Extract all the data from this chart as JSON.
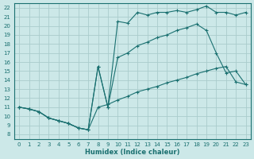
{
  "xlabel": "Humidex (Indice chaleur)",
  "bg_color": "#cce8e8",
  "grid_color": "#aacccc",
  "line_color": "#1a7070",
  "xlim": [
    -0.5,
    23.5
  ],
  "ylim": [
    7.5,
    22.5
  ],
  "xticks": [
    0,
    1,
    2,
    3,
    4,
    5,
    6,
    7,
    8,
    9,
    10,
    11,
    12,
    13,
    14,
    15,
    16,
    17,
    18,
    19,
    20,
    21,
    22,
    23
  ],
  "yticks": [
    8,
    9,
    10,
    11,
    12,
    13,
    14,
    15,
    16,
    17,
    18,
    19,
    20,
    21,
    22
  ],
  "line1_x": [
    0,
    1,
    2,
    3,
    4,
    5,
    6,
    7,
    8,
    9,
    10,
    11,
    12,
    13,
    14,
    15,
    16,
    17,
    18,
    19,
    20,
    21,
    22,
    23
  ],
  "line1_y": [
    11.0,
    10.8,
    10.5,
    9.8,
    9.5,
    9.2,
    8.7,
    8.5,
    11.0,
    11.3,
    11.8,
    12.2,
    12.7,
    13.0,
    13.3,
    13.7,
    14.0,
    14.3,
    14.7,
    15.0,
    15.3,
    15.5,
    13.8,
    13.5
  ],
  "line2_x": [
    0,
    1,
    2,
    3,
    4,
    5,
    6,
    7,
    8,
    9,
    10,
    11,
    12,
    13,
    14,
    15,
    16,
    17,
    18,
    19,
    20,
    21,
    22,
    23
  ],
  "line2_y": [
    11.0,
    10.8,
    10.5,
    9.8,
    9.5,
    9.2,
    8.7,
    8.5,
    15.5,
    11.0,
    20.5,
    20.3,
    21.5,
    21.2,
    21.5,
    21.5,
    21.7,
    21.5,
    21.8,
    22.2,
    21.5,
    21.5,
    21.2,
    21.5
  ],
  "line3_x": [
    0,
    1,
    2,
    3,
    4,
    5,
    6,
    7,
    8,
    9,
    10,
    11,
    12,
    13,
    14,
    15,
    16,
    17,
    18,
    19,
    20,
    21,
    22,
    23
  ],
  "line3_y": [
    11.0,
    10.8,
    10.5,
    9.8,
    9.5,
    9.2,
    8.7,
    8.5,
    15.5,
    11.0,
    16.5,
    17.0,
    17.8,
    18.2,
    18.7,
    19.0,
    19.5,
    19.8,
    20.2,
    19.5,
    17.0,
    14.8,
    15.0,
    13.5
  ]
}
